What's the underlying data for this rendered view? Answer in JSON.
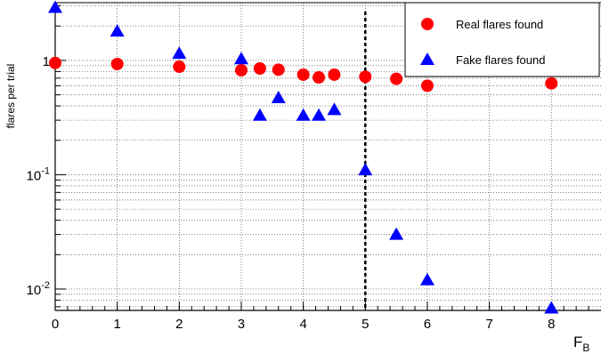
{
  "chart_data": {
    "type": "scatter",
    "title": "",
    "xlabel": "F",
    "xlabel_sub": "B",
    "ylabel": "flares per trial",
    "xlim": [
      0,
      8.8
    ],
    "ylim": [
      0.0065,
      3.2
    ],
    "yscale": "log",
    "grid": true,
    "legend_position": "top-right",
    "x_ticks": [
      {
        "value": 0,
        "label": "0"
      },
      {
        "value": 1,
        "label": "1"
      },
      {
        "value": 2,
        "label": "2"
      },
      {
        "value": 3,
        "label": "3"
      },
      {
        "value": 4,
        "label": "4"
      },
      {
        "value": 5,
        "label": "5"
      },
      {
        "value": 6,
        "label": "6"
      },
      {
        "value": 7,
        "label": "7"
      },
      {
        "value": 8,
        "label": "8"
      }
    ],
    "y_ticks": [
      {
        "value": 0.01,
        "base": "10",
        "exp": "-2"
      },
      {
        "value": 0.1,
        "base": "10",
        "exp": "-1"
      },
      {
        "value": 1,
        "base": "1",
        "exp": ""
      }
    ],
    "vertical_line": {
      "x": 5,
      "style": "dashed",
      "color": "#000000"
    },
    "series": [
      {
        "name": "Real flares found",
        "marker": "circle",
        "color": "#ff0000",
        "points": [
          {
            "x": 0,
            "y": 0.95
          },
          {
            "x": 1,
            "y": 0.93
          },
          {
            "x": 2,
            "y": 0.88
          },
          {
            "x": 3,
            "y": 0.82
          },
          {
            "x": 3.3,
            "y": 0.85
          },
          {
            "x": 3.6,
            "y": 0.83
          },
          {
            "x": 4,
            "y": 0.75
          },
          {
            "x": 4.25,
            "y": 0.71
          },
          {
            "x": 4.5,
            "y": 0.75
          },
          {
            "x": 5,
            "y": 0.72
          },
          {
            "x": 5.5,
            "y": 0.69
          },
          {
            "x": 6,
            "y": 0.6
          },
          {
            "x": 8,
            "y": 0.63
          }
        ]
      },
      {
        "name": "Fake flares found",
        "marker": "triangle",
        "color": "#0000ff",
        "points": [
          {
            "x": 0,
            "y": 2.9
          },
          {
            "x": 1,
            "y": 1.8
          },
          {
            "x": 2,
            "y": 1.15
          },
          {
            "x": 3,
            "y": 1.03
          },
          {
            "x": 3.3,
            "y": 0.33
          },
          {
            "x": 3.6,
            "y": 0.47
          },
          {
            "x": 4,
            "y": 0.33
          },
          {
            "x": 4.25,
            "y": 0.33
          },
          {
            "x": 4.5,
            "y": 0.37
          },
          {
            "x": 5,
            "y": 0.11
          },
          {
            "x": 5.5,
            "y": 0.03
          },
          {
            "x": 6,
            "y": 0.012
          },
          {
            "x": 8,
            "y": 0.0068
          }
        ]
      }
    ]
  }
}
